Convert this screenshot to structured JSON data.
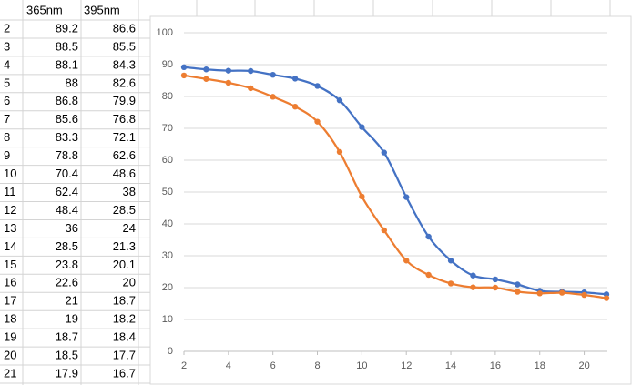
{
  "table": {
    "header": [
      "365nm",
      "395nm"
    ],
    "rows": [
      [
        2,
        89.2,
        86.6
      ],
      [
        3,
        88.5,
        85.5
      ],
      [
        4,
        88.1,
        84.3
      ],
      [
        5,
        88,
        82.6
      ],
      [
        6,
        86.8,
        79.9
      ],
      [
        7,
        85.6,
        76.8
      ],
      [
        8,
        83.3,
        72.1
      ],
      [
        9,
        78.8,
        62.6
      ],
      [
        10,
        70.4,
        48.6
      ],
      [
        11,
        62.4,
        38
      ],
      [
        12,
        48.4,
        28.5
      ],
      [
        13,
        36,
        24
      ],
      [
        14,
        28.5,
        21.3
      ],
      [
        15,
        23.8,
        20.1
      ],
      [
        16,
        22.6,
        20
      ],
      [
        17,
        21,
        18.7
      ],
      [
        18,
        19,
        18.2
      ],
      [
        19,
        18.7,
        18.4
      ],
      [
        20,
        18.5,
        17.7
      ],
      [
        21,
        17.9,
        16.7
      ]
    ]
  },
  "chart_data": {
    "type": "line",
    "smooth": true,
    "grid": true,
    "x": [
      2,
      3,
      4,
      5,
      6,
      7,
      8,
      9,
      10,
      11,
      12,
      13,
      14,
      15,
      16,
      17,
      18,
      19,
      20,
      21
    ],
    "series": [
      {
        "color": "#4472c4",
        "values": [
          89.2,
          88.5,
          88.1,
          88,
          86.8,
          85.6,
          83.3,
          78.8,
          70.4,
          62.4,
          48.4,
          36,
          28.5,
          23.8,
          22.6,
          21,
          19,
          18.7,
          18.5,
          17.9
        ]
      },
      {
        "color": "#ed7d31",
        "values": [
          86.6,
          85.5,
          84.3,
          82.6,
          79.9,
          76.8,
          72.1,
          62.6,
          48.6,
          38,
          28.5,
          24,
          21.3,
          20.1,
          20,
          18.7,
          18.2,
          18.4,
          17.7,
          16.7
        ]
      }
    ],
    "xlim": [
      2,
      21
    ],
    "xticks": [
      2,
      4,
      6,
      8,
      10,
      12,
      14,
      16,
      18,
      20
    ],
    "ylim": [
      0,
      100
    ],
    "yticks": [
      0,
      10,
      20,
      30,
      40,
      50,
      60,
      70,
      80,
      90,
      100
    ]
  }
}
